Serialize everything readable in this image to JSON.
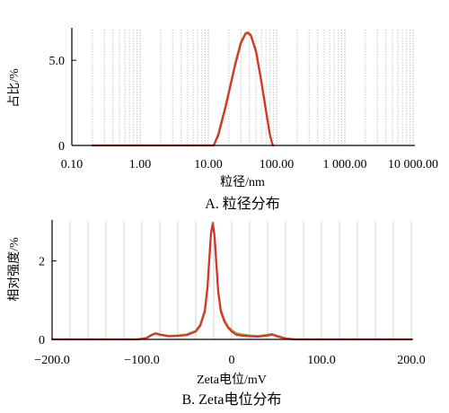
{
  "chart_data": [
    {
      "type": "line",
      "panel": "A",
      "caption": "A. 粒径分布",
      "xlabel": "粒径/nm",
      "ylabel": "占比/%",
      "x_scale": "log",
      "xlim": [
        0.1,
        10000
      ],
      "ylim": [
        0,
        6.8
      ],
      "x_ticks": [
        0.1,
        1,
        10,
        100,
        1000,
        10000
      ],
      "x_tick_labels": [
        "0.10",
        "1.00",
        "10.00",
        "100.00",
        "1 000.00",
        "10 000.00"
      ],
      "y_ticks": [
        0,
        5.0
      ],
      "y_tick_labels": [
        "0",
        "5.0"
      ],
      "grid": "vertical-log-dotted",
      "series": [
        {
          "color": "#d9322e",
          "x": [
            0.2,
            12,
            14,
            16,
            18,
            20,
            25,
            30,
            35,
            38,
            42,
            50,
            60,
            70,
            80,
            88,
            90
          ],
          "y": [
            0,
            0,
            0.6,
            1.5,
            2.3,
            3.1,
            4.8,
            6.0,
            6.55,
            6.6,
            6.45,
            5.5,
            3.7,
            2.0,
            0.6,
            0,
            0
          ]
        },
        {
          "color": "#5a9a2e",
          "x": [
            0.2,
            12,
            14,
            16,
            18,
            20,
            25,
            30,
            35,
            38,
            42,
            50,
            60,
            70,
            80,
            88,
            90
          ],
          "y": [
            0,
            0,
            0.7,
            1.6,
            2.4,
            3.2,
            4.9,
            6.1,
            6.6,
            6.65,
            6.5,
            5.6,
            3.8,
            2.1,
            0.65,
            0,
            0
          ]
        },
        {
          "color": "#e2bf2a",
          "x": [
            0.2,
            12,
            14,
            16,
            18,
            20,
            25,
            30,
            35,
            38,
            42,
            50,
            60,
            70,
            80,
            88,
            90
          ],
          "y": [
            0,
            0,
            0.65,
            1.55,
            2.35,
            3.15,
            4.85,
            6.05,
            6.58,
            6.62,
            6.48,
            5.55,
            3.75,
            2.05,
            0.62,
            0,
            0
          ]
        }
      ]
    },
    {
      "type": "line",
      "panel": "B",
      "caption": "B. Zeta电位分布",
      "xlabel": "Zeta电位/mV",
      "ylabel": "相对强度/%",
      "xlim": [
        -200,
        200
      ],
      "ylim": [
        0,
        3
      ],
      "x_ticks": [
        -200,
        -100,
        0,
        100,
        200
      ],
      "x_tick_labels": [
        "−200.0",
        "−100.0",
        "0",
        "100.0",
        "200.0"
      ],
      "y_ticks": [
        0,
        2
      ],
      "y_tick_labels": [
        "0",
        "2"
      ],
      "grid": "vertical",
      "series": [
        {
          "color": "#d9322e",
          "x": [
            -200,
            -105,
            -95,
            -90,
            -85,
            -80,
            -70,
            -60,
            -50,
            -40,
            -35,
            -30,
            -27,
            -25,
            -23,
            -21,
            -19,
            -17,
            -15,
            -12,
            -8,
            -4,
            0,
            5,
            10,
            20,
            30,
            40,
            45,
            50,
            60,
            70,
            200
          ],
          "y": [
            0,
            0,
            0.03,
            0.1,
            0.15,
            0.12,
            0.08,
            0.09,
            0.11,
            0.2,
            0.35,
            0.7,
            1.3,
            2.0,
            2.7,
            2.95,
            2.6,
            1.9,
            1.2,
            0.7,
            0.45,
            0.3,
            0.2,
            0.12,
            0.1,
            0.08,
            0.07,
            0.1,
            0.12,
            0.08,
            0.02,
            0,
            0
          ]
        },
        {
          "color": "#5a9a2e",
          "x": [
            -200,
            -105,
            -95,
            -90,
            -85,
            -80,
            -70,
            -60,
            -50,
            -40,
            -35,
            -30,
            -27,
            -25,
            -23,
            -21,
            -19,
            -17,
            -15,
            -12,
            -8,
            -4,
            0,
            5,
            10,
            20,
            30,
            40,
            45,
            50,
            60,
            70,
            200
          ],
          "y": [
            0,
            0,
            0.04,
            0.11,
            0.16,
            0.13,
            0.09,
            0.1,
            0.13,
            0.22,
            0.38,
            0.75,
            1.35,
            2.05,
            2.75,
            2.98,
            2.65,
            1.95,
            1.25,
            0.75,
            0.5,
            0.33,
            0.24,
            0.16,
            0.13,
            0.1,
            0.09,
            0.12,
            0.14,
            0.1,
            0.03,
            0,
            0
          ]
        },
        {
          "color": "#e2bf2a",
          "x": [
            -200,
            -105,
            -95,
            -90,
            -85,
            -80,
            -70,
            -60,
            -50,
            -40,
            -35,
            -30,
            -27,
            -25,
            -23,
            -21,
            -19,
            -17,
            -15,
            -12,
            -8,
            -4,
            0,
            5,
            10,
            20,
            30,
            40,
            45,
            50,
            60,
            70,
            200
          ],
          "y": [
            0,
            0,
            0.035,
            0.1,
            0.155,
            0.125,
            0.085,
            0.095,
            0.12,
            0.21,
            0.36,
            0.72,
            1.32,
            2.02,
            2.72,
            2.96,
            2.62,
            1.92,
            1.22,
            0.72,
            0.48,
            0.32,
            0.22,
            0.14,
            0.11,
            0.09,
            0.08,
            0.11,
            0.13,
            0.09,
            0.025,
            0,
            0
          ]
        }
      ]
    }
  ]
}
